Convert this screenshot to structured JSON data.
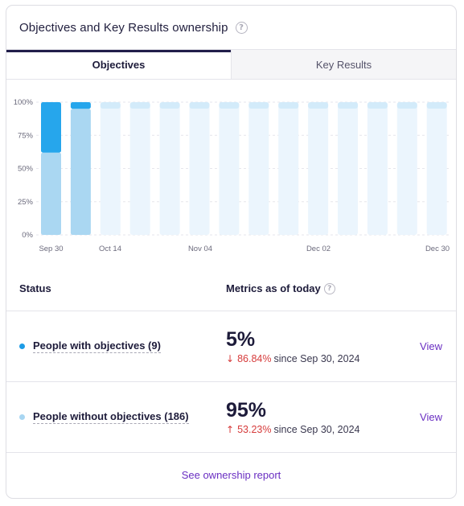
{
  "card": {
    "title": "Objectives and Key Results ownership",
    "help_icon": "?"
  },
  "tabs": [
    {
      "label": "Objectives",
      "active": true
    },
    {
      "label": "Key Results",
      "active": false
    }
  ],
  "chart_data": {
    "type": "bar",
    "stacked": true,
    "y_ticks": [
      "100%",
      "75%",
      "50%",
      "25%",
      "0%"
    ],
    "ylim": [
      0,
      100
    ],
    "x_tick_labels": [
      "Sep 30",
      "Oct 14",
      "Nov 04",
      "Dec 02",
      "Dec 30"
    ],
    "num_bars": 14,
    "series": [
      {
        "name": "People without objectives",
        "color": "#aad7f2",
        "values": [
          62,
          95,
          null,
          null,
          null,
          null,
          null,
          null,
          null,
          null,
          null,
          null,
          null,
          null
        ]
      },
      {
        "name": "People with objectives",
        "color": "#26a6ec",
        "values": [
          38,
          5,
          null,
          null,
          null,
          null,
          null,
          null,
          null,
          null,
          null,
          null,
          null,
          null
        ]
      }
    ],
    "placeholder_color": "#ebf5fd",
    "placeholder_cap_color": "#d3ebfa",
    "grid": true
  },
  "table": {
    "status_header": "Status",
    "metrics_header": "Metrics as of today",
    "rows": [
      {
        "label": "People with objectives (9)",
        "dot_color": "#1d9ce6",
        "value": "5%",
        "arrow": "↓",
        "change": "86.84%",
        "since": "since Sep 30, 2024",
        "view": "View"
      },
      {
        "label": "People without objectives (186)",
        "dot_color": "#a8d6f2",
        "value": "95%",
        "arrow": "↑",
        "change": "53.23%",
        "since": "since Sep 30, 2024",
        "view": "View"
      }
    ]
  },
  "footer": {
    "link": "See ownership report"
  }
}
